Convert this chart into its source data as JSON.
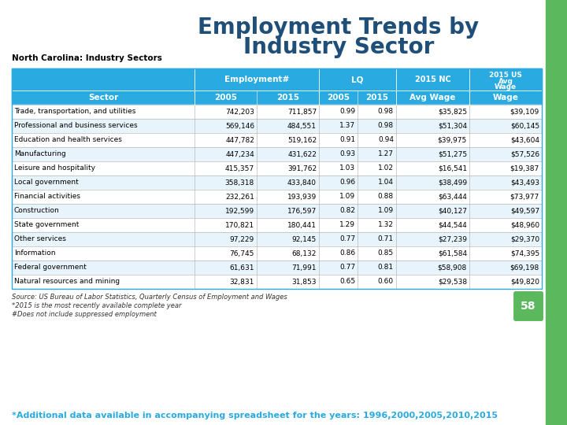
{
  "title_line1": "Employment Trends by",
  "title_line2": "Industry Sector",
  "table_title": "North Carolina: Industry Sectors",
  "rows": [
    [
      "Trade, transportation, and utilities",
      "742,203",
      "711,857",
      "0.99",
      "0.98",
      "$35,825",
      "$39,109"
    ],
    [
      "Professional and business services",
      "569,146",
      "484,551",
      "1.37",
      "0.98",
      "$51,304",
      "$60,145"
    ],
    [
      "Education and health services",
      "447,782",
      "519,162",
      "0.91",
      "0.94",
      "$39,975",
      "$43,604"
    ],
    [
      "Manufacturing",
      "447,234",
      "431,622",
      "0.93",
      "1.27",
      "$51,275",
      "$57,526"
    ],
    [
      "Leisure and hospitality",
      "415,357",
      "391,762",
      "1.03",
      "1.02",
      "$16,541",
      "$19,387"
    ],
    [
      "Local government",
      "358,318",
      "433,840",
      "0.96",
      "1.04",
      "$38,499",
      "$43,493"
    ],
    [
      "Financial activities",
      "232,261",
      "193,939",
      "1.09",
      "0.88",
      "$63,444",
      "$73,977"
    ],
    [
      "Construction",
      "192,599",
      "176,597",
      "0.82",
      "1.09",
      "$40,127",
      "$49,597"
    ],
    [
      "State government",
      "170,821",
      "180,441",
      "1.29",
      "1.32",
      "$44,544",
      "$48,960"
    ],
    [
      "Other services",
      "97,229",
      "92,145",
      "0.77",
      "0.71",
      "$27,239",
      "$29,370"
    ],
    [
      "Information",
      "76,745",
      "68,132",
      "0.86",
      "0.85",
      "$61,584",
      "$74,395"
    ],
    [
      "Federal government",
      "61,631",
      "71,991",
      "0.77",
      "0.81",
      "$58,908",
      "$69,198"
    ],
    [
      "Natural resources and mining",
      "32,831",
      "31,853",
      "0.65",
      "0.60",
      "$29,538",
      "$49,820"
    ]
  ],
  "footnote1": "Source: US Bureau of Labor Statistics, Quarterly Census of Employment and Wages",
  "footnote2": "*2015 is the most recently available complete year",
  "footnote3": "#Does not include suppressed employment",
  "bottom_note": "*Additional data available in accompanying spreadsheet for the years: 1996,2000,2005,2010,2015",
  "page_num": "58",
  "header_bg": "#29ABE2",
  "alt_row_bg": "#E8F4FB",
  "white_row_bg": "#FFFFFF",
  "title_color": "#1F4E79",
  "bottom_note_color": "#29ABE2",
  "page_num_bg": "#5CB85C",
  "right_bar_color": "#5CB85C",
  "border_color": "#29ABE2",
  "line_color": "#AAAAAA"
}
